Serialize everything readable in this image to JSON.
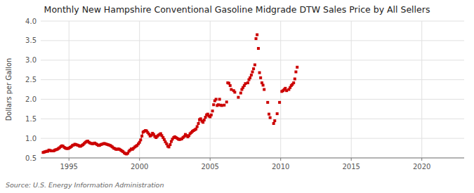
{
  "chart_data": {
    "type": "line",
    "title": "Monthly New Hampshire Conventional Gasoline Midgrade DTW Sales Price by All Sellers",
    "ylabel": "Dollars per Gallon",
    "source": "Source: U.S. Energy Information Administration",
    "xlim": [
      1993.0,
      2023.0
    ],
    "xticks": [
      1995,
      2000,
      2005,
      2010,
      2015,
      2020
    ],
    "ylim": [
      0.5,
      4.0
    ],
    "yticks": [
      0.5,
      {
        "value": 1.0,
        "label": "1.0"
      },
      1.5,
      {
        "value": 2.0,
        "label": "2.0"
      },
      2.5,
      {
        "value": 3.0,
        "label": "3.0"
      },
      3.5,
      {
        "value": 4.0,
        "label": "4.0"
      }
    ],
    "grid": true,
    "series": [
      {
        "type": "line",
        "color": "#cc0000",
        "marker": "square",
        "x": [
          1993.17,
          1993.25,
          1993.33,
          1993.42,
          1993.5,
          1993.58,
          1993.67,
          1993.75,
          1993.83,
          1993.92,
          1994.0,
          1994.08,
          1994.17,
          1994.25,
          1994.33,
          1994.42,
          1994.5,
          1994.58,
          1994.67,
          1994.75,
          1994.83,
          1994.92,
          1995.0,
          1995.08,
          1995.17,
          1995.25,
          1995.33,
          1995.42,
          1995.5,
          1995.58,
          1995.67,
          1995.75,
          1995.83,
          1995.92,
          1996.0,
          1996.08,
          1996.17,
          1996.25,
          1996.33,
          1996.42,
          1996.5,
          1996.58,
          1996.67,
          1996.75,
          1996.83,
          1996.92,
          1997.0,
          1997.08,
          1997.17,
          1997.25,
          1997.33,
          1997.42,
          1997.5,
          1997.58,
          1997.67,
          1997.75,
          1997.83,
          1997.92,
          1998.0,
          1998.08,
          1998.17,
          1998.25,
          1998.33,
          1998.42,
          1998.5,
          1998.58,
          1998.67,
          1998.75,
          1998.83,
          1998.92,
          1999.0,
          1999.08,
          1999.17,
          1999.25,
          1999.33,
          1999.42,
          1999.5,
          1999.58,
          1999.67,
          1999.75,
          1999.83,
          1999.92,
          2000.0,
          2000.08,
          2000.17,
          2000.25,
          2000.33,
          2000.42,
          2000.5,
          2000.58,
          2000.67,
          2000.75,
          2000.83,
          2000.92,
          2001.0,
          2001.08,
          2001.17,
          2001.25,
          2001.33,
          2001.42,
          2001.5,
          2001.58,
          2001.67,
          2001.75,
          2001.83,
          2001.92,
          2002.0,
          2002.08,
          2002.17,
          2002.25,
          2002.33,
          2002.42,
          2002.5,
          2002.58,
          2002.67,
          2002.75,
          2002.83,
          2002.92,
          2003.0,
          2003.08,
          2003.17,
          2003.25,
          2003.33,
          2003.42,
          2003.5,
          2003.58,
          2003.67,
          2003.75,
          2003.83,
          2003.92,
          2004.0,
          2004.08,
          2004.17,
          2004.25,
          2004.33,
          2004.42,
          2004.5,
          2004.58,
          2004.67,
          2004.75,
          2004.83,
          2004.92
        ],
        "values": [
          0.64,
          0.65,
          0.66,
          0.67,
          0.67,
          0.7,
          0.69,
          0.68,
          0.68,
          0.68,
          0.7,
          0.71,
          0.72,
          0.74,
          0.76,
          0.79,
          0.81,
          0.8,
          0.77,
          0.75,
          0.74,
          0.74,
          0.75,
          0.77,
          0.79,
          0.82,
          0.83,
          0.85,
          0.84,
          0.83,
          0.82,
          0.8,
          0.8,
          0.82,
          0.84,
          0.87,
          0.9,
          0.92,
          0.93,
          0.9,
          0.88,
          0.87,
          0.86,
          0.87,
          0.88,
          0.86,
          0.84,
          0.82,
          0.82,
          0.84,
          0.85,
          0.86,
          0.87,
          0.86,
          0.85,
          0.84,
          0.83,
          0.82,
          0.8,
          0.78,
          0.75,
          0.74,
          0.72,
          0.72,
          0.73,
          0.72,
          0.7,
          0.68,
          0.66,
          0.63,
          0.61,
          0.6,
          0.62,
          0.67,
          0.7,
          0.73,
          0.72,
          0.75,
          0.78,
          0.8,
          0.82,
          0.86,
          0.9,
          0.96,
          1.06,
          1.16,
          1.18,
          1.2,
          1.19,
          1.15,
          1.11,
          1.06,
          1.08,
          1.13,
          1.1,
          1.05,
          1.02,
          1.05,
          1.08,
          1.1,
          1.12,
          1.07,
          1.02,
          0.97,
          0.91,
          0.86,
          0.8,
          0.78,
          0.84,
          0.92,
          0.98,
          1.02,
          1.04,
          1.02,
          1.0,
          0.98,
          0.97,
          0.98,
          0.99,
          1.02,
          1.05,
          1.1,
          1.07,
          1.04,
          1.07,
          1.12,
          1.15,
          1.18,
          1.2,
          1.22,
          1.24,
          1.3,
          1.38,
          1.48,
          1.5,
          1.44,
          1.41,
          1.47,
          1.54,
          1.6,
          1.62,
          1.57
        ]
      },
      {
        "type": "scatter",
        "color": "#cc0000",
        "marker": "square",
        "x": [
          2005.0,
          2005.08,
          2005.17,
          2005.25,
          2005.33,
          2005.42,
          2005.5,
          2005.58,
          2005.67,
          2005.75,
          2005.83,
          2006.0,
          2006.17,
          2006.25,
          2006.33,
          2006.42,
          2006.5,
          2006.67,
          2006.75,
          2007.0,
          2007.17,
          2007.25,
          2007.33,
          2007.42,
          2007.5,
          2007.67,
          2007.75,
          2007.83,
          2007.92,
          2008.0,
          2008.08,
          2008.17,
          2008.25,
          2008.33,
          2008.42,
          2008.5,
          2008.58,
          2008.67,
          2008.75,
          2008.83,
          2009.08,
          2009.17,
          2009.25,
          2009.5,
          2009.58,
          2009.75,
          2009.92,
          2010.08,
          2010.17,
          2010.25,
          2010.33,
          2010.42,
          2010.58,
          2010.67,
          2010.75,
          2010.83,
          2010.92,
          2011.0,
          2011.08,
          2011.17
        ],
        "values": [
          1.55,
          1.6,
          1.7,
          1.86,
          1.96,
          2.0,
          1.84,
          1.86,
          2.0,
          1.85,
          1.84,
          1.85,
          1.93,
          2.42,
          2.41,
          2.35,
          2.25,
          2.22,
          2.18,
          2.05,
          2.16,
          2.25,
          2.3,
          2.35,
          2.4,
          2.42,
          2.5,
          2.55,
          2.62,
          2.7,
          2.78,
          2.88,
          3.55,
          3.65,
          3.3,
          2.68,
          2.55,
          2.42,
          2.36,
          2.25,
          1.92,
          1.62,
          1.53,
          1.38,
          1.45,
          1.63,
          1.92,
          2.2,
          2.22,
          2.25,
          2.28,
          2.22,
          2.25,
          2.3,
          2.35,
          2.38,
          2.42,
          2.52,
          2.7,
          2.82
        ]
      }
    ]
  }
}
